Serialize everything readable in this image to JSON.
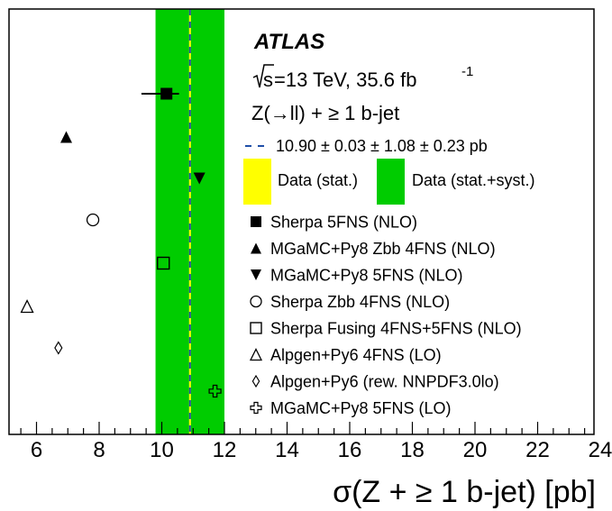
{
  "chart_data": {
    "type": "scatter",
    "xlabel": "σ(Z + ≥ 1 b-jet) [pb]",
    "xlim": [
      5,
      24
    ],
    "xticks": [
      6,
      8,
      10,
      12,
      14,
      16,
      18,
      20,
      22,
      24
    ],
    "experiment": "ATLAS",
    "energy_prefix": "s",
    "energy_text": "=13 TeV, 35.6 fb",
    "energy_sup": "-1",
    "process": "Z(→ll) + ≥ 1 b-jet",
    "measurement": {
      "label": "10.90 ± 0.03 ± 1.08 ± 0.23 pb",
      "value": 10.9,
      "stat": 0.03,
      "syst_total": 1.1,
      "line_color": "#1f4fa8",
      "stat_color": "#ffff00",
      "syst_color": "#00cc00",
      "stat_label": "Data (stat.)",
      "syst_label": "Data (stat.+syst.)"
    },
    "series": [
      {
        "name": "Sherpa 5FNS (NLO)",
        "marker": "filled-square",
        "x": 10.15,
        "xerr_low": 0.8,
        "xerr_high": 0.4
      },
      {
        "name": "MGaMC+Py8 Zbb 4FNS (NLO)",
        "marker": "filled-triangle-up",
        "x": 6.95
      },
      {
        "name": "MGaMC+Py8 5FNS (NLO)",
        "marker": "filled-triangle-down",
        "x": 11.2
      },
      {
        "name": "Sherpa Zbb 4FNS (NLO)",
        "marker": "open-circle",
        "x": 7.8
      },
      {
        "name": "Sherpa Fusing 4FNS+5FNS (NLO)",
        "marker": "open-square",
        "x": 10.05
      },
      {
        "name": "Alpgen+Py6 4FNS (LO)",
        "marker": "open-triangle-up",
        "x": 5.7
      },
      {
        "name": "Alpgen+Py6 (rew. NNPDF3.0lo)",
        "marker": "open-diamond",
        "x": 6.7
      },
      {
        "name": "MGaMC+Py8 5FNS (LO)",
        "marker": "open-cross",
        "x": 11.7
      }
    ]
  }
}
